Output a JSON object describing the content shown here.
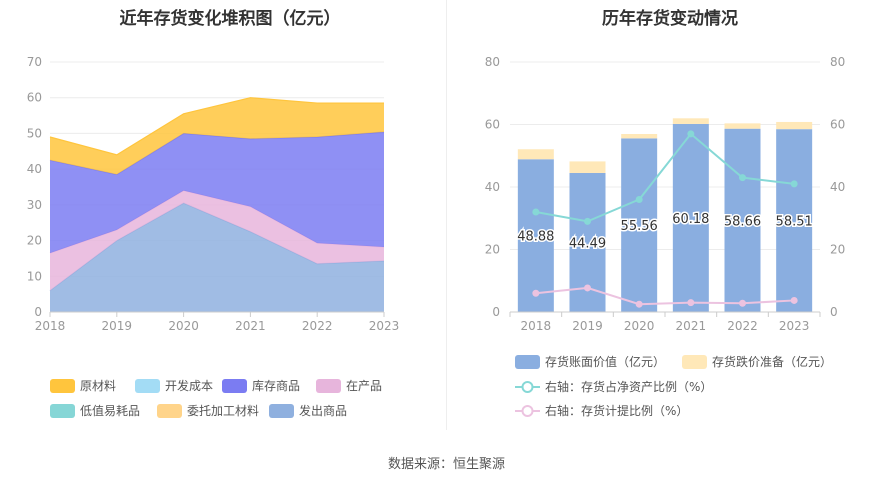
{
  "left": {
    "title": "近年存货变化堆积图（亿元）",
    "legend": [
      {
        "name": "原材料",
        "color": "#ffc53d"
      },
      {
        "name": "开发成本",
        "color": "#a3dcf5"
      },
      {
        "name": "库存商品",
        "color": "#7b7cf2"
      },
      {
        "name": "在产品",
        "color": "#e7b5dc"
      },
      {
        "name": "低值易耗品",
        "color": "#86d6d6"
      },
      {
        "name": "委托加工材料",
        "color": "#ffd48a"
      },
      {
        "name": "发出商品",
        "color": "#8fb0df"
      }
    ]
  },
  "right": {
    "title": "历年存货变动情况",
    "legend": [
      {
        "name": "存货账面价值（亿元）",
        "color": "#8aaee0"
      },
      {
        "name": "存货跌价准备（亿元）",
        "color": "#ffe8b8"
      },
      {
        "name": "右轴：存货占净资产比例（%）",
        "color": "#86d8d6"
      },
      {
        "name": "右轴：存货计提比例（%）",
        "color": "#ecc3e0"
      }
    ]
  },
  "source": "数据来源：恒生聚源",
  "chart_data": [
    {
      "type": "area",
      "title": "近年存货变化堆积图（亿元）",
      "stacked": true,
      "x": [
        "2018",
        "2019",
        "2020",
        "2021",
        "2022",
        "2023"
      ],
      "ylim": [
        0,
        70
      ],
      "yticks": [
        0,
        10,
        20,
        30,
        40,
        50,
        60,
        70
      ],
      "series": [
        {
          "name": "发出商品",
          "color": "#8fb0df",
          "values": [
            6.0,
            20.0,
            30.5,
            22.5,
            13.5,
            14.3
          ]
        },
        {
          "name": "在产品",
          "color": "#e7b5dc",
          "values": [
            10.5,
            3.0,
            3.5,
            7.0,
            5.8,
            3.9
          ]
        },
        {
          "name": "库存商品",
          "color": "#7b7cf2",
          "values": [
            26.0,
            15.5,
            16.0,
            19.0,
            29.7,
            32.2
          ]
        },
        {
          "name": "原材料",
          "color": "#ffc53d",
          "values": [
            6.5,
            5.5,
            5.5,
            11.5,
            9.5,
            8.1
          ]
        }
      ]
    },
    {
      "type": "bar",
      "title": "历年存货变动情况",
      "stacked": true,
      "categories": [
        "2018",
        "2019",
        "2020",
        "2021",
        "2022",
        "2023"
      ],
      "ylim": [
        0,
        80
      ],
      "yticks": [
        0,
        20,
        40,
        60,
        80
      ],
      "y2lim": [
        0,
        80
      ],
      "y2ticks": [
        0,
        20,
        40,
        60,
        80
      ],
      "series": [
        {
          "name": "存货账面价值（亿元）",
          "color": "#8aaee0",
          "values": [
            48.88,
            44.49,
            55.56,
            60.18,
            58.66,
            58.51
          ],
          "labels": [
            "48.88",
            "44.49",
            "55.56",
            "60.18",
            "58.66",
            "58.51"
          ]
        },
        {
          "name": "存货跌价准备（亿元）",
          "color": "#ffe8b8",
          "values": [
            3.2,
            3.7,
            1.4,
            1.8,
            1.7,
            2.3
          ]
        }
      ],
      "lines": [
        {
          "name": "右轴：存货占净资产比例（%）",
          "axis": "right",
          "color": "#86d8d6",
          "values": [
            32,
            29,
            36,
            57,
            43,
            41
          ]
        },
        {
          "name": "右轴：存货计提比例（%）",
          "axis": "right",
          "color": "#ecc3e0",
          "values": [
            6,
            7.7,
            2.5,
            3,
            2.8,
            3.7
          ]
        }
      ]
    }
  ]
}
